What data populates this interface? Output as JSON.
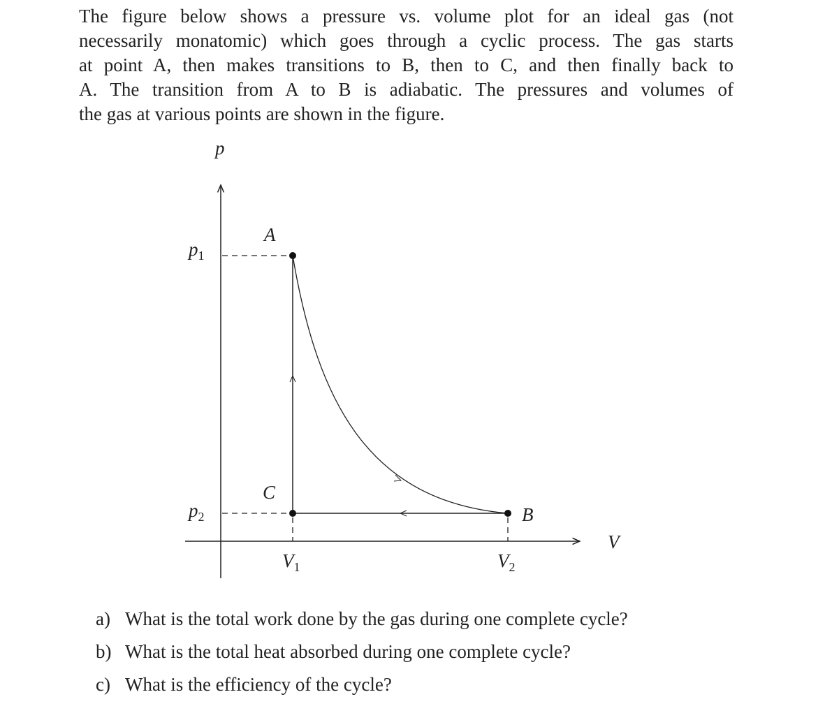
{
  "paragraph": {
    "lines": [
      "The figure below shows a pressure vs. volume plot for an ideal gas (not",
      "necessarily monatomic) which goes through a cyclic process. The gas starts",
      "at point A, then makes transitions to B, then to C, and then finally back to",
      "A. The transition from A to B is adiabatic. The pressures and volumes of",
      "the gas at various points are shown in the figure."
    ]
  },
  "figure": {
    "y_axis_label": "p",
    "x_axis_label": "V",
    "points": {
      "a": "A",
      "b": "B",
      "c": "C"
    },
    "p1": {
      "symbol": "p",
      "subscript": "1"
    },
    "p2": {
      "symbol": "p",
      "subscript": "2"
    },
    "v1": {
      "symbol": "V",
      "subscript": "1"
    },
    "v2": {
      "symbol": "V",
      "subscript": "2"
    }
  },
  "questions": [
    {
      "label": "a)",
      "text": "What is the total work done by the gas during one complete cycle?"
    },
    {
      "label": "b)",
      "text": "What is the total heat absorbed during one complete cycle?"
    },
    {
      "label": "c)",
      "text": "What is the efficiency of the cycle?"
    }
  ]
}
